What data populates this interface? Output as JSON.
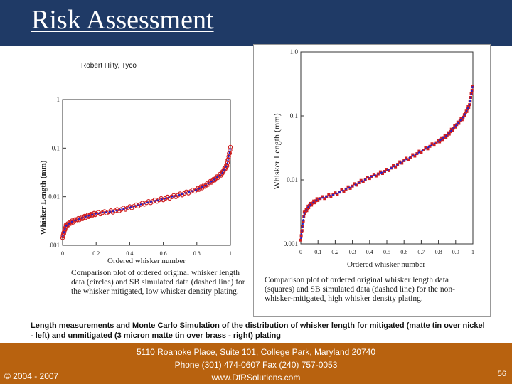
{
  "slide": {
    "title": "Risk Assessment",
    "credit": "Robert Hilty, Tyco",
    "lead_text": "Length measurements and Monte Carlo Simulation of the distribution of whisker length for mitigated (matte tin over nickel - left) and unmitigated (3 micron matte tin over brass - right) plating",
    "colors": {
      "header": "#1f3a66",
      "footer": "#b8620f",
      "circles": "#d02020",
      "dashed": "#2222cc"
    }
  },
  "footer": {
    "copyright": "© 2004 - 2007",
    "address_line1": "5110 Roanoke Place, Suite 101, College Park, Maryland 20740",
    "address_line2": "Phone (301) 474-0607  Fax (240) 757-0053",
    "website": "www.DfRSolutions.com",
    "page_number": "56"
  },
  "chart_data": [
    {
      "type": "scatter",
      "ylabel": "Whisker Length (mm)",
      "xlabel": "Ordered whisker number",
      "y_scale": "log",
      "ylim": [
        0.001,
        1
      ],
      "xlim": [
        0,
        1
      ],
      "x_ticks": [
        "0",
        "0.2",
        "0.4",
        "0.6",
        "0.8",
        "1"
      ],
      "y_ticks": [
        "1",
        "0.1",
        "0.01",
        ".001"
      ],
      "caption": "Comparison plot of ordered original whisker length data (circles) and SB simulated data (dashed line) for the whisker mitigated, low whisker density plating.",
      "series_points": [
        [
          0.0,
          0.0015
        ],
        [
          0.02,
          0.0025
        ],
        [
          0.05,
          0.003
        ],
        [
          0.1,
          0.0035
        ],
        [
          0.15,
          0.004
        ],
        [
          0.2,
          0.0045
        ],
        [
          0.3,
          0.005
        ],
        [
          0.4,
          0.006
        ],
        [
          0.5,
          0.0075
        ],
        [
          0.6,
          0.009
        ],
        [
          0.7,
          0.011
        ],
        [
          0.8,
          0.014
        ],
        [
          0.85,
          0.017
        ],
        [
          0.9,
          0.022
        ],
        [
          0.95,
          0.03
        ],
        [
          0.98,
          0.045
        ],
        [
          1.0,
          0.1
        ]
      ]
    },
    {
      "type": "scatter",
      "ylabel": "Whisker Length (mm)",
      "xlabel": "Ordered whisker number",
      "y_scale": "log",
      "ylim": [
        0.001,
        1
      ],
      "xlim": [
        0,
        1
      ],
      "x_ticks": [
        "0",
        "0.1",
        "0.2",
        "0.3",
        "0.4",
        "0.5",
        "0.6",
        "0.7",
        "0.8",
        "0.9",
        "1"
      ],
      "y_ticks": [
        "1.0",
        "0.1",
        "0.01",
        "0.001"
      ],
      "caption": "Comparison plot of ordered original whisker length data (squares) and SB simulated data (dashed line) for the non-whisker-mitigated, high whisker density plating.",
      "series_points": [
        [
          0.0,
          0.0012
        ],
        [
          0.02,
          0.003
        ],
        [
          0.05,
          0.004
        ],
        [
          0.1,
          0.005
        ],
        [
          0.2,
          0.006
        ],
        [
          0.3,
          0.008
        ],
        [
          0.4,
          0.011
        ],
        [
          0.5,
          0.014
        ],
        [
          0.6,
          0.02
        ],
        [
          0.7,
          0.028
        ],
        [
          0.8,
          0.04
        ],
        [
          0.85,
          0.05
        ],
        [
          0.9,
          0.07
        ],
        [
          0.95,
          0.1
        ],
        [
          0.98,
          0.15
        ],
        [
          1.0,
          0.3
        ]
      ]
    }
  ]
}
